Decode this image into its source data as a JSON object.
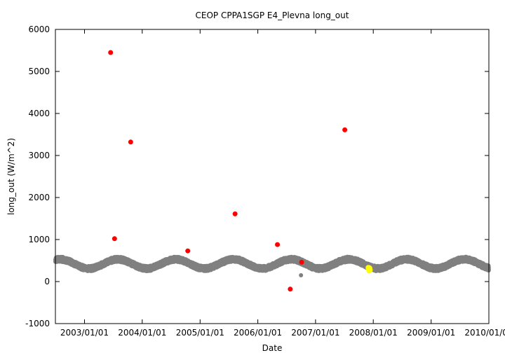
{
  "chart_data": {
    "type": "scatter",
    "title": "CEOP  CPPA1SGP E4_Plevna  long_out",
    "xlabel": "Date",
    "ylabel": "long_out (W/m^2)",
    "xlim": [
      "2002-07-01",
      "2010-01-01"
    ],
    "ylim": [
      -1000,
      6000
    ],
    "x_ticks": [
      {
        "date": "2003-01-01",
        "label": "2003/01/01"
      },
      {
        "date": "2004-01-01",
        "label": "2004/01/01"
      },
      {
        "date": "2005-01-01",
        "label": "2005/01/01"
      },
      {
        "date": "2006-01-01",
        "label": "2006/01/01"
      },
      {
        "date": "2007-01-01",
        "label": "2007/01/01"
      },
      {
        "date": "2008-01-01",
        "label": "2008/01/01"
      },
      {
        "date": "2009-01-01",
        "label": "2009/01/01"
      },
      {
        "date": "2010-01-01",
        "label": "2010/01/01"
      }
    ],
    "y_ticks": [
      {
        "value": -1000,
        "label": "-1000"
      },
      {
        "value": 0,
        "label": "0"
      },
      {
        "value": 1000,
        "label": "1000"
      },
      {
        "value": 2000,
        "label": "2000"
      },
      {
        "value": 3000,
        "label": "3000"
      },
      {
        "value": 4000,
        "label": "4000"
      },
      {
        "value": 5000,
        "label": "5000"
      },
      {
        "value": 6000,
        "label": "6000"
      }
    ],
    "grid": false,
    "colors": {
      "normal": "#808080",
      "flagged": "#ff0000",
      "highlight": "#ffff00"
    },
    "series": [
      {
        "color": "#808080",
        "band": {
          "mean": 420,
          "amplitude": 110,
          "peak_month": 7,
          "spread": 60,
          "start": "2002-07-01",
          "end": "2010-01-01"
        },
        "points": [
          {
            "x": "2006-10-01",
            "y": 150
          }
        ]
      },
      {
        "color": "#ff0000",
        "points": [
          {
            "x": "2003-06-15",
            "y": 5450
          },
          {
            "x": "2003-07-10",
            "y": 1020
          },
          {
            "x": "2003-10-20",
            "y": 3320
          },
          {
            "x": "2004-10-15",
            "y": 730
          },
          {
            "x": "2005-08-10",
            "y": 1610
          },
          {
            "x": "2006-05-05",
            "y": 880
          },
          {
            "x": "2006-07-25",
            "y": -180
          },
          {
            "x": "2006-10-05",
            "y": 460
          },
          {
            "x": "2007-07-05",
            "y": 3610
          }
        ]
      },
      {
        "color": "#ffff00",
        "points": [
          {
            "x": "2007-12-01",
            "y": 330
          },
          {
            "x": "2007-12-03",
            "y": 300
          },
          {
            "x": "2007-12-06",
            "y": 260
          },
          {
            "x": "2007-12-08",
            "y": 320
          },
          {
            "x": "2007-12-11",
            "y": 280
          }
        ]
      }
    ]
  }
}
